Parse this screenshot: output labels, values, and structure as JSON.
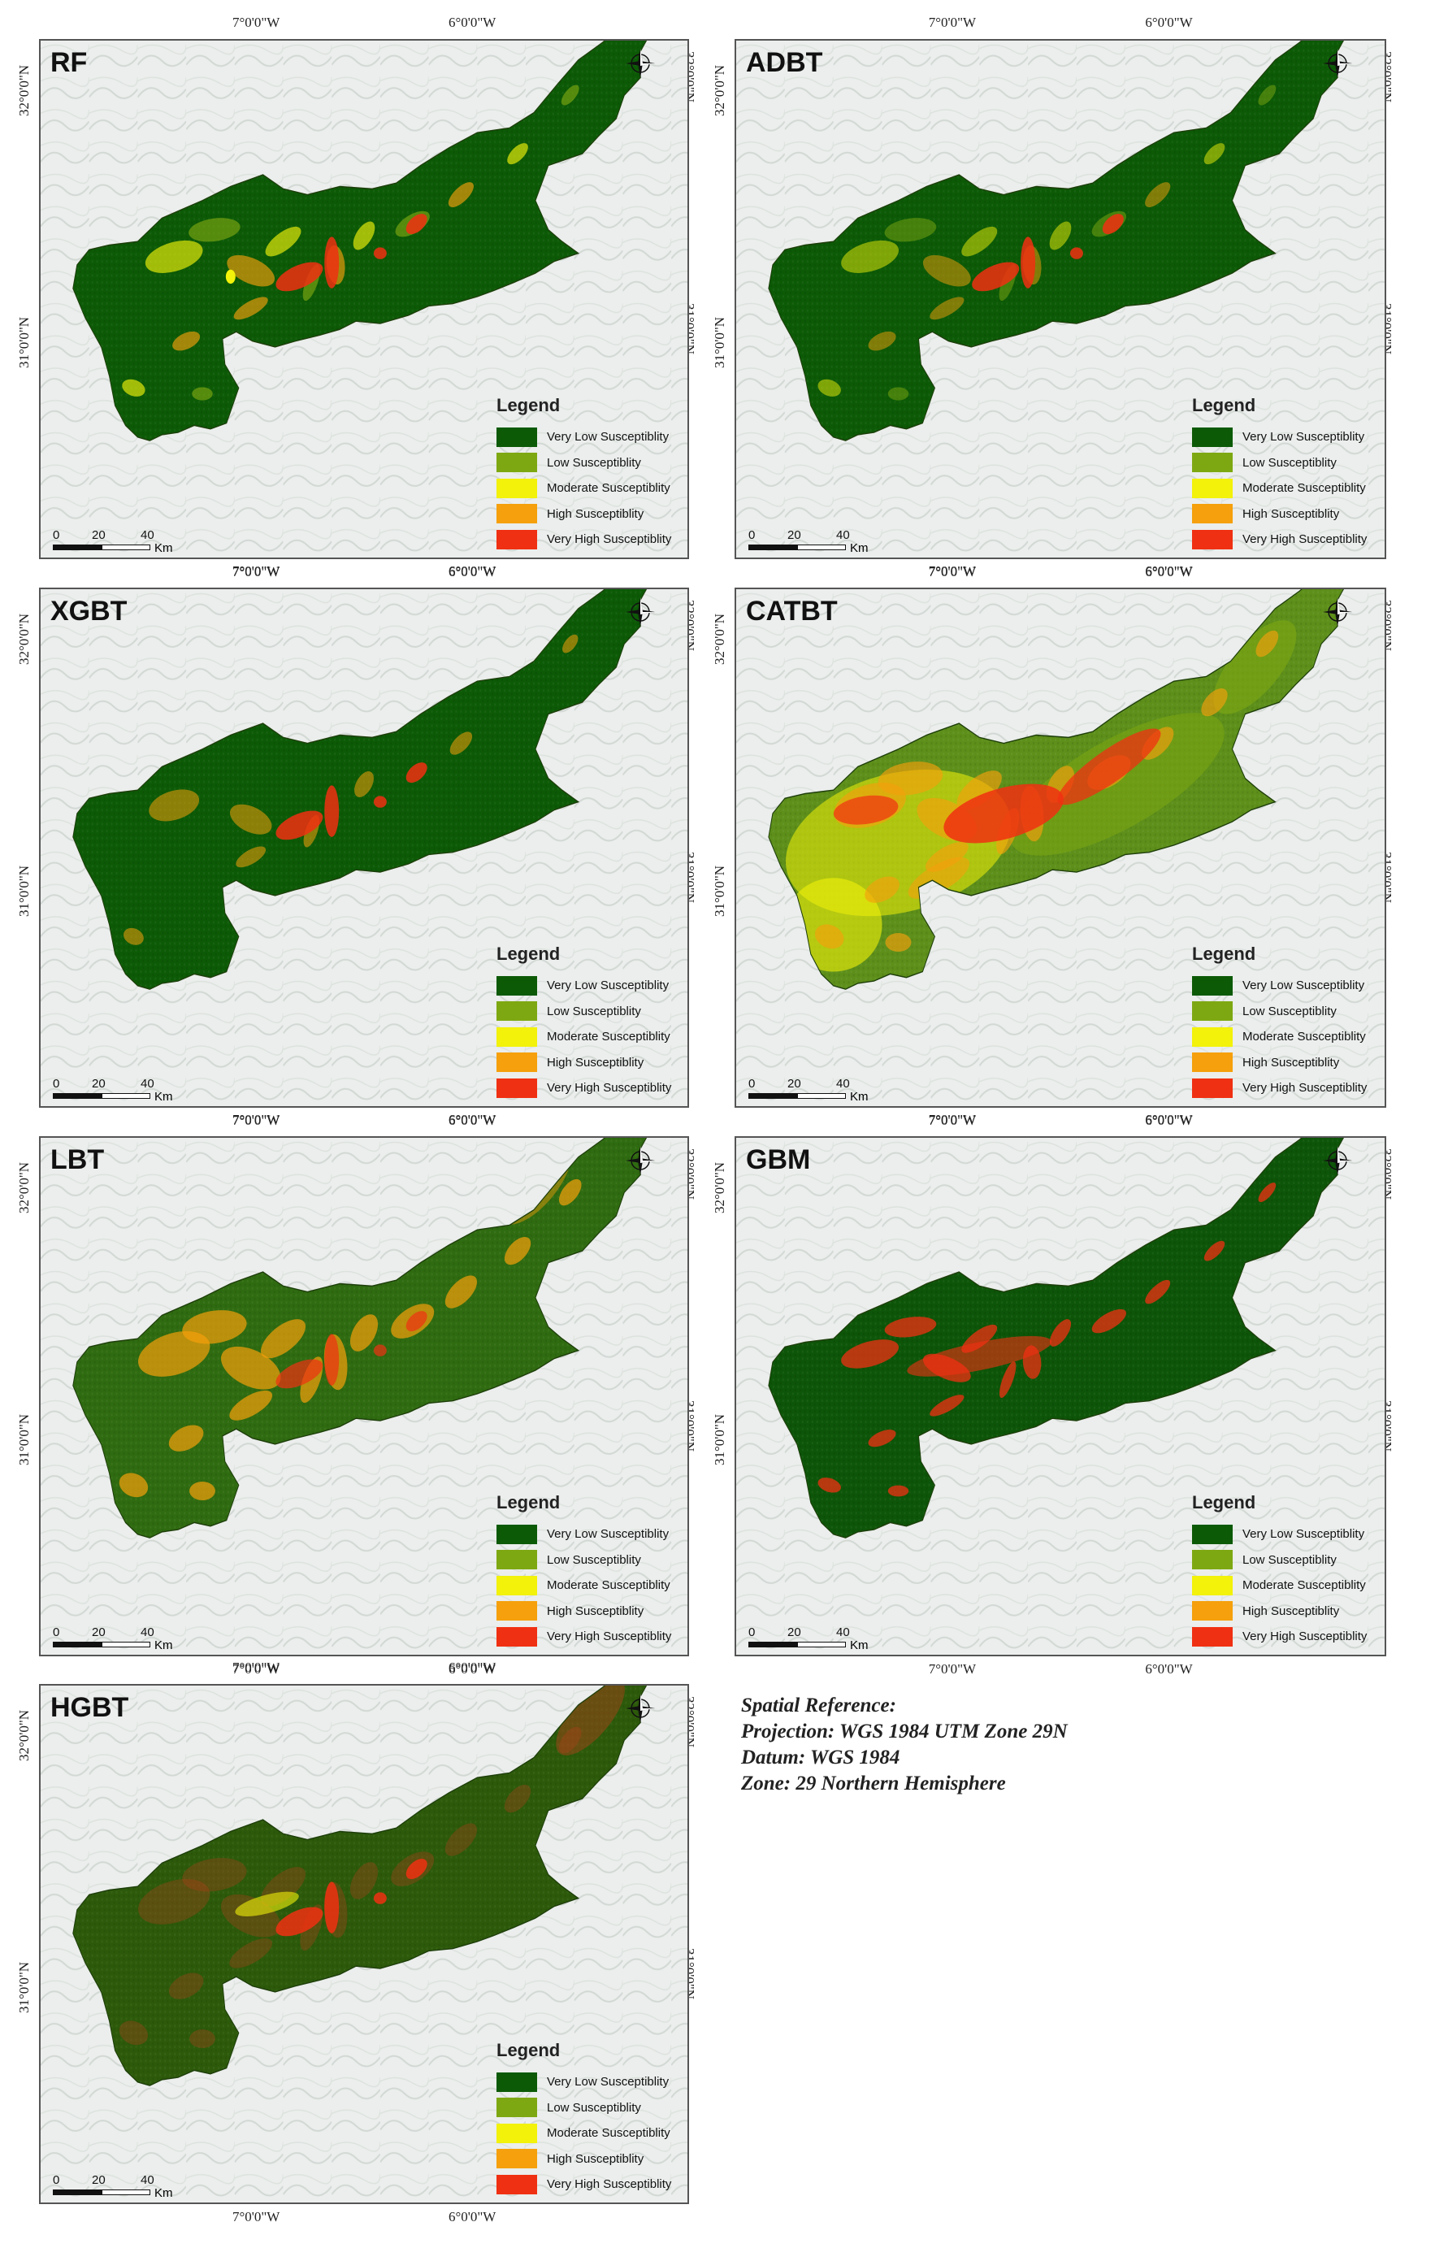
{
  "coords": {
    "lon_left": "7°0'0\"W",
    "lon_right": "6°0'0\"W",
    "lat_top": "32°0'0\"N",
    "lat_mid": "31°0'0\"N"
  },
  "legend": {
    "title": "Legend",
    "classes": [
      {
        "label": "Very Low Susceptiblity",
        "color": "#0c5a06"
      },
      {
        "label": "Low Susceptiblity",
        "color": "#7ea812"
      },
      {
        "label": "Moderate Susceptiblity",
        "color": "#f2f20a"
      },
      {
        "label": "High Susceptiblity",
        "color": "#f5a00c"
      },
      {
        "label": "Very High Susceptiblity",
        "color": "#f03012"
      }
    ]
  },
  "scale_bar": {
    "ticks": [
      "0",
      "20",
      "40"
    ],
    "unit": "Km"
  },
  "compass": {
    "n": "N",
    "s": "S",
    "e": "E",
    "w": "W"
  },
  "panels": [
    {
      "title": "RF"
    },
    {
      "title": "ADBT"
    },
    {
      "title": "XGBT"
    },
    {
      "title": "CATBT"
    },
    {
      "title": "LBT"
    },
    {
      "title": "GBM"
    },
    {
      "title": "HGBT"
    }
  ],
  "spatial_reference": {
    "title": "Spatial Reference:",
    "projection": "Projection: WGS 1984 UTM Zone 29N",
    "datum": "Datum: WGS 1984",
    "zone": "Zone: 29 Northern Hemisphere"
  },
  "colors": {
    "base": "#2d6b12",
    "accent_dark": "#0f4a07"
  }
}
